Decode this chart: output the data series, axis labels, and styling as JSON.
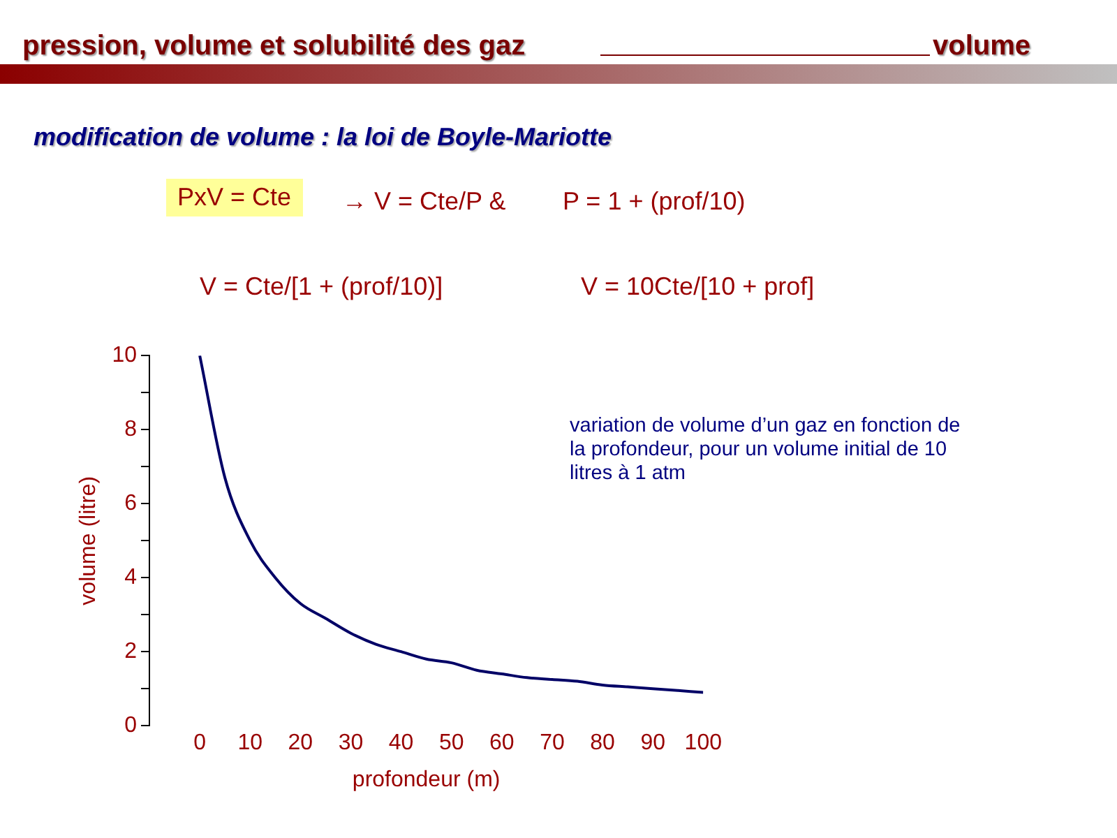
{
  "chart_data": {
    "type": "line",
    "title": "pression, volume et solubilité des gaz",
    "subtitle": "modification de volume : la loi de Boyle-Mariotte",
    "annotations": [
      "volume",
      "PxV = Cte",
      "→ V = Cte/P &",
      "P = 1 + (prof/10)",
      "V = Cte/[1 + (prof/10)]",
      "V = 10Cte/[10 + prof]",
      "variation de volume d’un gaz en fonction de la profondeur, pour un volume initial de 10 litres à 1 atm"
    ],
    "xlabel": "profondeur (m)",
    "ylabel": "volume (litre)",
    "x": [
      0,
      5,
      10,
      15,
      20,
      25,
      30,
      35,
      40,
      45,
      50,
      55,
      60,
      65,
      70,
      75,
      80,
      85,
      90,
      95,
      100
    ],
    "values": [
      10,
      6.7,
      5.0,
      4.0,
      3.3,
      2.9,
      2.5,
      2.2,
      2.0,
      1.8,
      1.7,
      1.5,
      1.4,
      1.3,
      1.25,
      1.2,
      1.1,
      1.05,
      1.0,
      0.95,
      0.9
    ],
    "color": "#000066",
    "xlim": [
      -10,
      100
    ],
    "xticks": [
      0,
      10,
      20,
      30,
      40,
      50,
      60,
      70,
      80,
      90,
      100
    ],
    "ylim": [
      0,
      10
    ],
    "yticks": [
      0,
      {
        "value": 1,
        "label": null
      },
      2,
      {
        "value": 3,
        "label": null
      },
      4,
      {
        "value": 5,
        "label": null
      },
      6,
      {
        "value": 7,
        "label": null
      },
      8,
      {
        "value": 9,
        "label": null
      },
      10
    ]
  }
}
